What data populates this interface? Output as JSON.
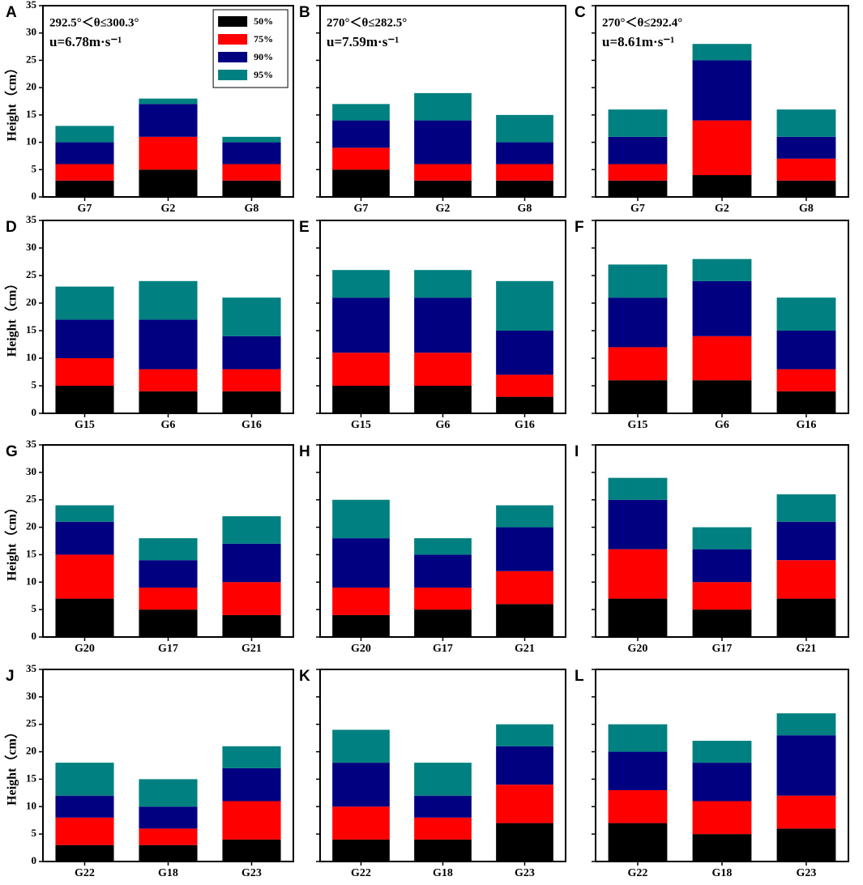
{
  "chart_data": [
    {
      "type": "bar",
      "panel": "A",
      "ylabel": "Height（cm）",
      "ytick_labels": true,
      "legend": "upper center",
      "annotations": [
        "292.5°＜θ≤300.3°",
        "u=6.78m·s⁻¹"
      ],
      "categories": [
        "G7",
        "G2",
        "G8"
      ],
      "ylim": [
        0,
        35
      ],
      "yticks": [
        0,
        5,
        10,
        15,
        20,
        25,
        30,
        35
      ],
      "series": [
        {
          "name": "50%",
          "color": "#000000",
          "values": [
            3,
            5,
            3
          ]
        },
        {
          "name": "75%",
          "color": "#ff0000",
          "values": [
            3,
            6,
            3
          ]
        },
        {
          "name": "90%",
          "color": "#000080",
          "values": [
            4,
            6,
            4
          ]
        },
        {
          "name": "95%",
          "color": "#008080",
          "values": [
            3,
            1,
            1
          ]
        }
      ]
    },
    {
      "type": "bar",
      "panel": "B",
      "ytick_labels": false,
      "annotations": [
        "270°＜θ≤282.5°",
        "u=7.59m·s⁻¹"
      ],
      "categories": [
        "G7",
        "G2",
        "G8"
      ],
      "ylim": [
        0,
        35
      ],
      "yticks": [
        0,
        5,
        10,
        15,
        20,
        25,
        30,
        35
      ],
      "series": [
        {
          "color": "#000000",
          "values": [
            5,
            3,
            3
          ]
        },
        {
          "color": "#ff0000",
          "values": [
            4,
            3,
            3
          ]
        },
        {
          "color": "#000080",
          "values": [
            5,
            8,
            4
          ]
        },
        {
          "color": "#008080",
          "values": [
            3,
            5,
            5
          ]
        }
      ]
    },
    {
      "type": "bar",
      "panel": "C",
      "ytick_labels": false,
      "annotations": [
        "270°＜θ≤292.4°",
        "u=8.61m·s⁻¹"
      ],
      "categories": [
        "G7",
        "G2",
        "G8"
      ],
      "ylim": [
        0,
        35
      ],
      "yticks": [
        0,
        5,
        10,
        15,
        20,
        25,
        30,
        35
      ],
      "series": [
        {
          "color": "#000000",
          "values": [
            3,
            4,
            3
          ]
        },
        {
          "color": "#ff0000",
          "values": [
            3,
            10,
            4
          ]
        },
        {
          "color": "#000080",
          "values": [
            5,
            11,
            4
          ]
        },
        {
          "color": "#008080",
          "values": [
            5,
            3,
            5
          ]
        }
      ]
    },
    {
      "type": "bar",
      "panel": "D",
      "ylabel": "Height（cm）",
      "ytick_labels": true,
      "categories": [
        "G15",
        "G6",
        "G16"
      ],
      "ylim": [
        0,
        35
      ],
      "yticks": [
        0,
        5,
        10,
        15,
        20,
        25,
        30,
        35
      ],
      "series": [
        {
          "color": "#000000",
          "values": [
            5,
            4,
            4
          ]
        },
        {
          "color": "#ff0000",
          "values": [
            5,
            4,
            4
          ]
        },
        {
          "color": "#000080",
          "values": [
            7,
            9,
            6
          ]
        },
        {
          "color": "#008080",
          "values": [
            6,
            7,
            7
          ]
        }
      ]
    },
    {
      "type": "bar",
      "panel": "E",
      "ytick_labels": false,
      "categories": [
        "G15",
        "G6",
        "G16"
      ],
      "ylim": [
        0,
        35
      ],
      "yticks": [
        0,
        5,
        10,
        15,
        20,
        25,
        30,
        35
      ],
      "series": [
        {
          "color": "#000000",
          "values": [
            5,
            5,
            3
          ]
        },
        {
          "color": "#ff0000",
          "values": [
            6,
            6,
            4
          ]
        },
        {
          "color": "#000080",
          "values": [
            10,
            10,
            8
          ]
        },
        {
          "color": "#008080",
          "values": [
            5,
            5,
            9
          ]
        }
      ]
    },
    {
      "type": "bar",
      "panel": "F",
      "ytick_labels": false,
      "categories": [
        "G15",
        "G6",
        "G16"
      ],
      "ylim": [
        0,
        35
      ],
      "yticks": [
        0,
        5,
        10,
        15,
        20,
        25,
        30,
        35
      ],
      "series": [
        {
          "color": "#000000",
          "values": [
            6,
            6,
            4
          ]
        },
        {
          "color": "#ff0000",
          "values": [
            6,
            8,
            4
          ]
        },
        {
          "color": "#000080",
          "values": [
            9,
            10,
            7
          ]
        },
        {
          "color": "#008080",
          "values": [
            6,
            4,
            6
          ]
        }
      ]
    },
    {
      "type": "bar",
      "panel": "G",
      "ylabel": "Height（cm）",
      "ytick_labels": true,
      "categories": [
        "G20",
        "G17",
        "G21"
      ],
      "ylim": [
        0,
        35
      ],
      "yticks": [
        0,
        5,
        10,
        15,
        20,
        25,
        30,
        35
      ],
      "series": [
        {
          "color": "#000000",
          "values": [
            7,
            5,
            4
          ]
        },
        {
          "color": "#ff0000",
          "values": [
            8,
            4,
            6
          ]
        },
        {
          "color": "#000080",
          "values": [
            6,
            5,
            7
          ]
        },
        {
          "color": "#008080",
          "values": [
            3,
            4,
            5
          ]
        }
      ]
    },
    {
      "type": "bar",
      "panel": "H",
      "ytick_labels": false,
      "categories": [
        "G20",
        "G17",
        "G21"
      ],
      "ylim": [
        0,
        35
      ],
      "yticks": [
        0,
        5,
        10,
        15,
        20,
        25,
        30,
        35
      ],
      "series": [
        {
          "color": "#000000",
          "values": [
            4,
            5,
            6
          ]
        },
        {
          "color": "#ff0000",
          "values": [
            5,
            4,
            6
          ]
        },
        {
          "color": "#000080",
          "values": [
            9,
            6,
            8
          ]
        },
        {
          "color": "#008080",
          "values": [
            7,
            3,
            4
          ]
        }
      ]
    },
    {
      "type": "bar",
      "panel": "I",
      "ytick_labels": false,
      "categories": [
        "G20",
        "G17",
        "G21"
      ],
      "ylim": [
        0,
        35
      ],
      "yticks": [
        0,
        5,
        10,
        15,
        20,
        25,
        30,
        35
      ],
      "series": [
        {
          "color": "#000000",
          "values": [
            7,
            5,
            7
          ]
        },
        {
          "color": "#ff0000",
          "values": [
            9,
            5,
            7
          ]
        },
        {
          "color": "#000080",
          "values": [
            9,
            6,
            7
          ]
        },
        {
          "color": "#008080",
          "values": [
            4,
            4,
            5
          ]
        }
      ]
    },
    {
      "type": "bar",
      "panel": "J",
      "ylabel": "Height（cm）",
      "ytick_labels": true,
      "categories": [
        "G22",
        "G18",
        "G23"
      ],
      "ylim": [
        0,
        35
      ],
      "yticks": [
        0,
        5,
        10,
        15,
        20,
        25,
        30,
        35
      ],
      "series": [
        {
          "color": "#000000",
          "values": [
            3,
            3,
            4
          ]
        },
        {
          "color": "#ff0000",
          "values": [
            5,
            3,
            7
          ]
        },
        {
          "color": "#000080",
          "values": [
            4,
            4,
            6
          ]
        },
        {
          "color": "#008080",
          "values": [
            6,
            5,
            4
          ]
        }
      ]
    },
    {
      "type": "bar",
      "panel": "K",
      "ytick_labels": false,
      "categories": [
        "G22",
        "G18",
        "G23"
      ],
      "ylim": [
        0,
        35
      ],
      "yticks": [
        0,
        5,
        10,
        15,
        20,
        25,
        30,
        35
      ],
      "series": [
        {
          "color": "#000000",
          "values": [
            4,
            4,
            7
          ]
        },
        {
          "color": "#ff0000",
          "values": [
            6,
            4,
            7
          ]
        },
        {
          "color": "#000080",
          "values": [
            8,
            4,
            7
          ]
        },
        {
          "color": "#008080",
          "values": [
            6,
            6,
            4
          ]
        }
      ]
    },
    {
      "type": "bar",
      "panel": "L",
      "ytick_labels": false,
      "categories": [
        "G22",
        "G18",
        "G23"
      ],
      "ylim": [
        0,
        35
      ],
      "yticks": [
        0,
        5,
        10,
        15,
        20,
        25,
        30,
        35
      ],
      "series": [
        {
          "color": "#000000",
          "values": [
            7,
            5,
            6
          ]
        },
        {
          "color": "#ff0000",
          "values": [
            6,
            6,
            6
          ]
        },
        {
          "color": "#000080",
          "values": [
            7,
            7,
            11
          ]
        },
        {
          "color": "#008080",
          "values": [
            5,
            4,
            4
          ]
        }
      ]
    }
  ]
}
